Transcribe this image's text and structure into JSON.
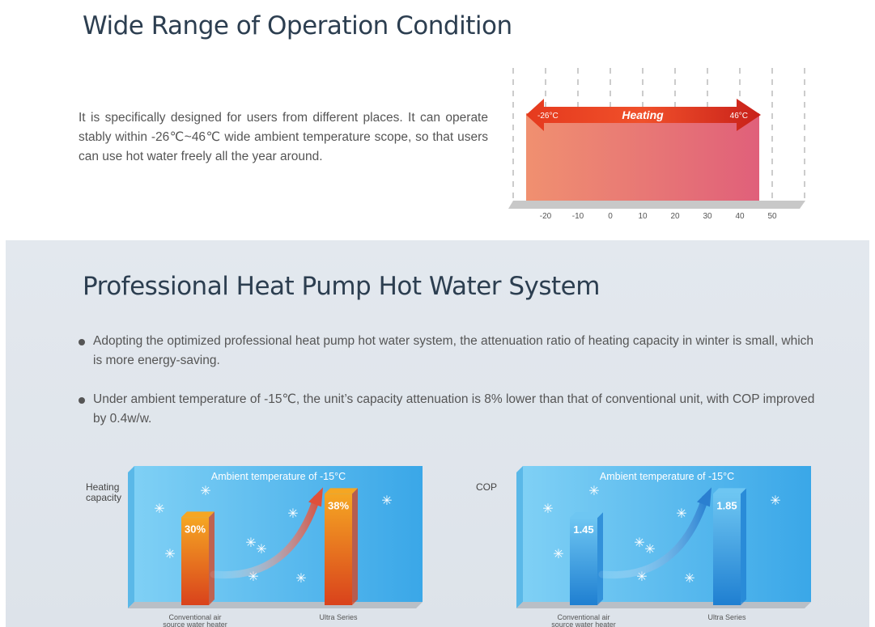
{
  "section1": {
    "title": "Wide Range of Operation Condition",
    "paragraph": "It is specifically designed for users from different places. It can operate stably within -26℃~46℃ wide ambient temperature scope, so that users can use hot water freely all the year around."
  },
  "range_chart": {
    "arrow_label": "Heating",
    "min_label": "-26°C",
    "max_label": "46°C",
    "range_min": -26,
    "range_max": 46,
    "ticks": [
      "-20",
      "-10",
      "0",
      "10",
      "20",
      "30",
      "40",
      "50"
    ],
    "tick_values": [
      -20,
      -10,
      0,
      10,
      20,
      30,
      40,
      50
    ]
  },
  "section2": {
    "title": "Professional Heat Pump Hot Water System",
    "bullets": [
      "Adopting the optimized professional heat pump hot water system, the attenuation ratio of heating capacity in winter is small, which is more energy-saving.",
      "Under ambient temperature of -15℃, the unit’s capacity attenuation is 8% lower than that of conventional unit, with COP improved by 0.4w/w."
    ]
  },
  "chart_data": [
    {
      "type": "bar",
      "title": "Ambient temperature of -15°C",
      "ylabel": "Heating capacity",
      "categories": [
        "Conventional air source water heater",
        "Ultra Series"
      ],
      "values": [
        30,
        38
      ],
      "value_labels": [
        "30%",
        "38%"
      ],
      "colors": {
        "bar": "#d9421c",
        "bar_top": "#f5a623",
        "panel": "#3aa7e8"
      }
    },
    {
      "type": "bar",
      "title": "Ambient temperature of -15°C",
      "ylabel": "COP",
      "categories": [
        "Conventional air source water heater",
        "Ultra Series"
      ],
      "values": [
        1.45,
        1.85
      ],
      "value_labels": [
        "1.45",
        "1.85"
      ],
      "colors": {
        "bar": "#1f7fd1",
        "bar_top": "#6ec6f2",
        "panel": "#3aa7e8"
      }
    }
  ]
}
